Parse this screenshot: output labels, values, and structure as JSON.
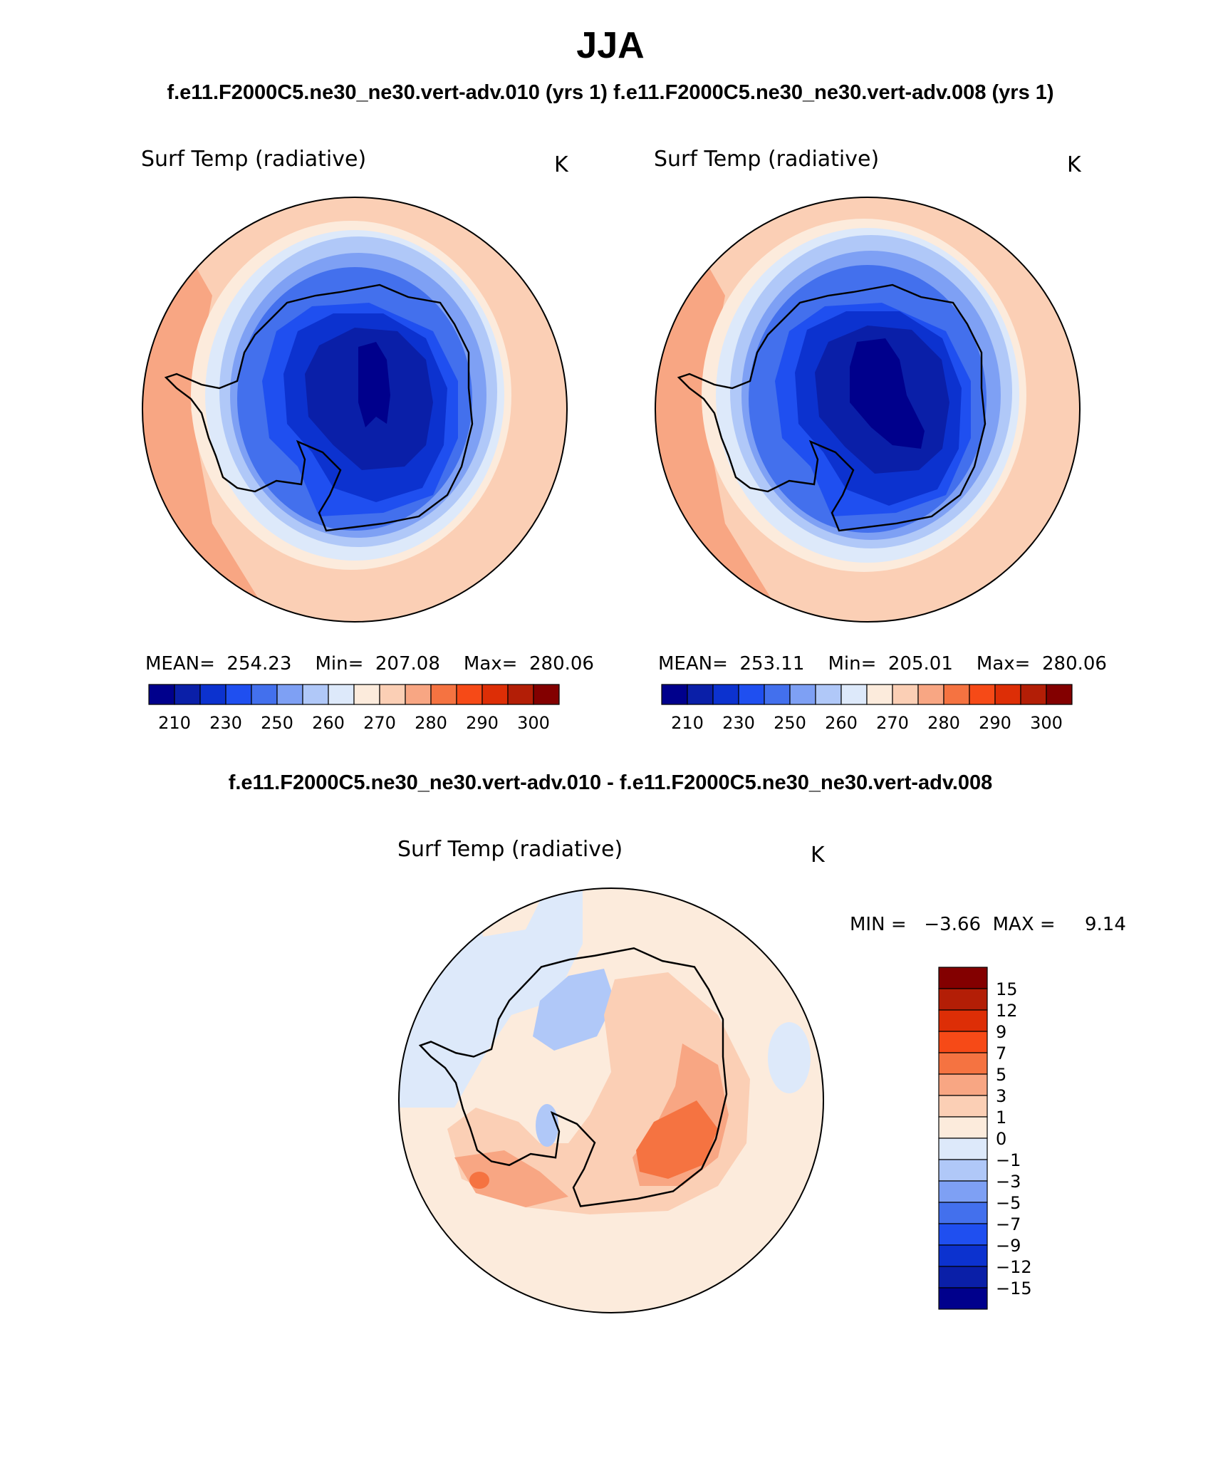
{
  "title": "JJA",
  "cases": {
    "header": "f.e11.F2000C5.ne30_ne30.vert-adv.010 (yrs 1) f.e11.F2000C5.ne30_ne30.vert-adv.008 (yrs 1)",
    "diff_header": "f.e11.F2000C5.ne30_ne30.vert-adv.010 - f.e11.F2000C5.ne30_ne30.vert-adv.008"
  },
  "panels": [
    {
      "variable": "Surf Temp (radiative)",
      "units": "K",
      "stats": "MEAN=  254.23    Min=  207.08    Max=  280.06",
      "pole_value": 207
    },
    {
      "variable": "Surf Temp (radiative)",
      "units": "K",
      "stats": "MEAN=  253.11    Min=  205.01    Max=  280.06",
      "pole_value": 205
    }
  ],
  "colorbar": {
    "colors": [
      "#00008c",
      "#0a1fa8",
      "#0c32cf",
      "#1f4ff0",
      "#4370ed",
      "#7ea0f4",
      "#b0c8f8",
      "#dde9fa",
      "#fcebdc",
      "#fbcfb5",
      "#f8a683",
      "#f57341",
      "#f64a17",
      "#dd2e06",
      "#b31e06",
      "#830000"
    ],
    "tick_labels": [
      "210",
      "230",
      "250",
      "260",
      "270",
      "280",
      "290",
      "300"
    ]
  },
  "diff_panel": {
    "variable": "Surf Temp (radiative)",
    "units": "K",
    "minmax": "MIN =   −3.66  MAX =     9.14",
    "colors": [
      "#830000",
      "#b31e06",
      "#dd2e06",
      "#f64a17",
      "#f57341",
      "#f8a683",
      "#fbcfb5",
      "#fcebdc",
      "#dde9fa",
      "#b0c8f8",
      "#7ea0f4",
      "#4370ed",
      "#1f4ff0",
      "#0c32cf",
      "#0a1fa8",
      "#00008c"
    ],
    "labels": [
      "15",
      "12",
      "9",
      "7",
      "5",
      "3",
      "1",
      "0",
      "−1",
      "−3",
      "−5",
      "−7",
      "−9",
      "−12",
      "−15"
    ]
  },
  "chart_data": [
    {
      "type": "heatmap",
      "title": "Surf Temp (radiative)",
      "units": "K",
      "case": "f.e11.F2000C5.ne30_ne30.vert-adv.010 (yrs 1)",
      "season": "JJA",
      "projection": "south polar stereographic",
      "mean": 254.23,
      "min": 207.08,
      "max": 280.06,
      "contour_levels": [
        210,
        220,
        230,
        240,
        250,
        255,
        260,
        265,
        270,
        275,
        280,
        285,
        290,
        295,
        300
      ]
    },
    {
      "type": "heatmap",
      "title": "Surf Temp (radiative)",
      "units": "K",
      "case": "f.e11.F2000C5.ne30_ne30.vert-adv.008 (yrs 1)",
      "season": "JJA",
      "projection": "south polar stereographic",
      "mean": 253.11,
      "min": 205.01,
      "max": 280.06,
      "contour_levels": [
        210,
        220,
        230,
        240,
        250,
        255,
        260,
        265,
        270,
        275,
        280,
        285,
        290,
        295,
        300
      ]
    },
    {
      "type": "heatmap",
      "title": "Surf Temp (radiative)",
      "units": "K",
      "case": "f.e11.F2000C5.ne30_ne30.vert-adv.010 - f.e11.F2000C5.ne30_ne30.vert-adv.008",
      "min": -3.66,
      "max": 9.14,
      "contour_levels": [
        -15,
        -12,
        -9,
        -7,
        -5,
        -3,
        -1,
        0,
        1,
        3,
        5,
        7,
        9,
        12,
        15
      ]
    }
  ]
}
